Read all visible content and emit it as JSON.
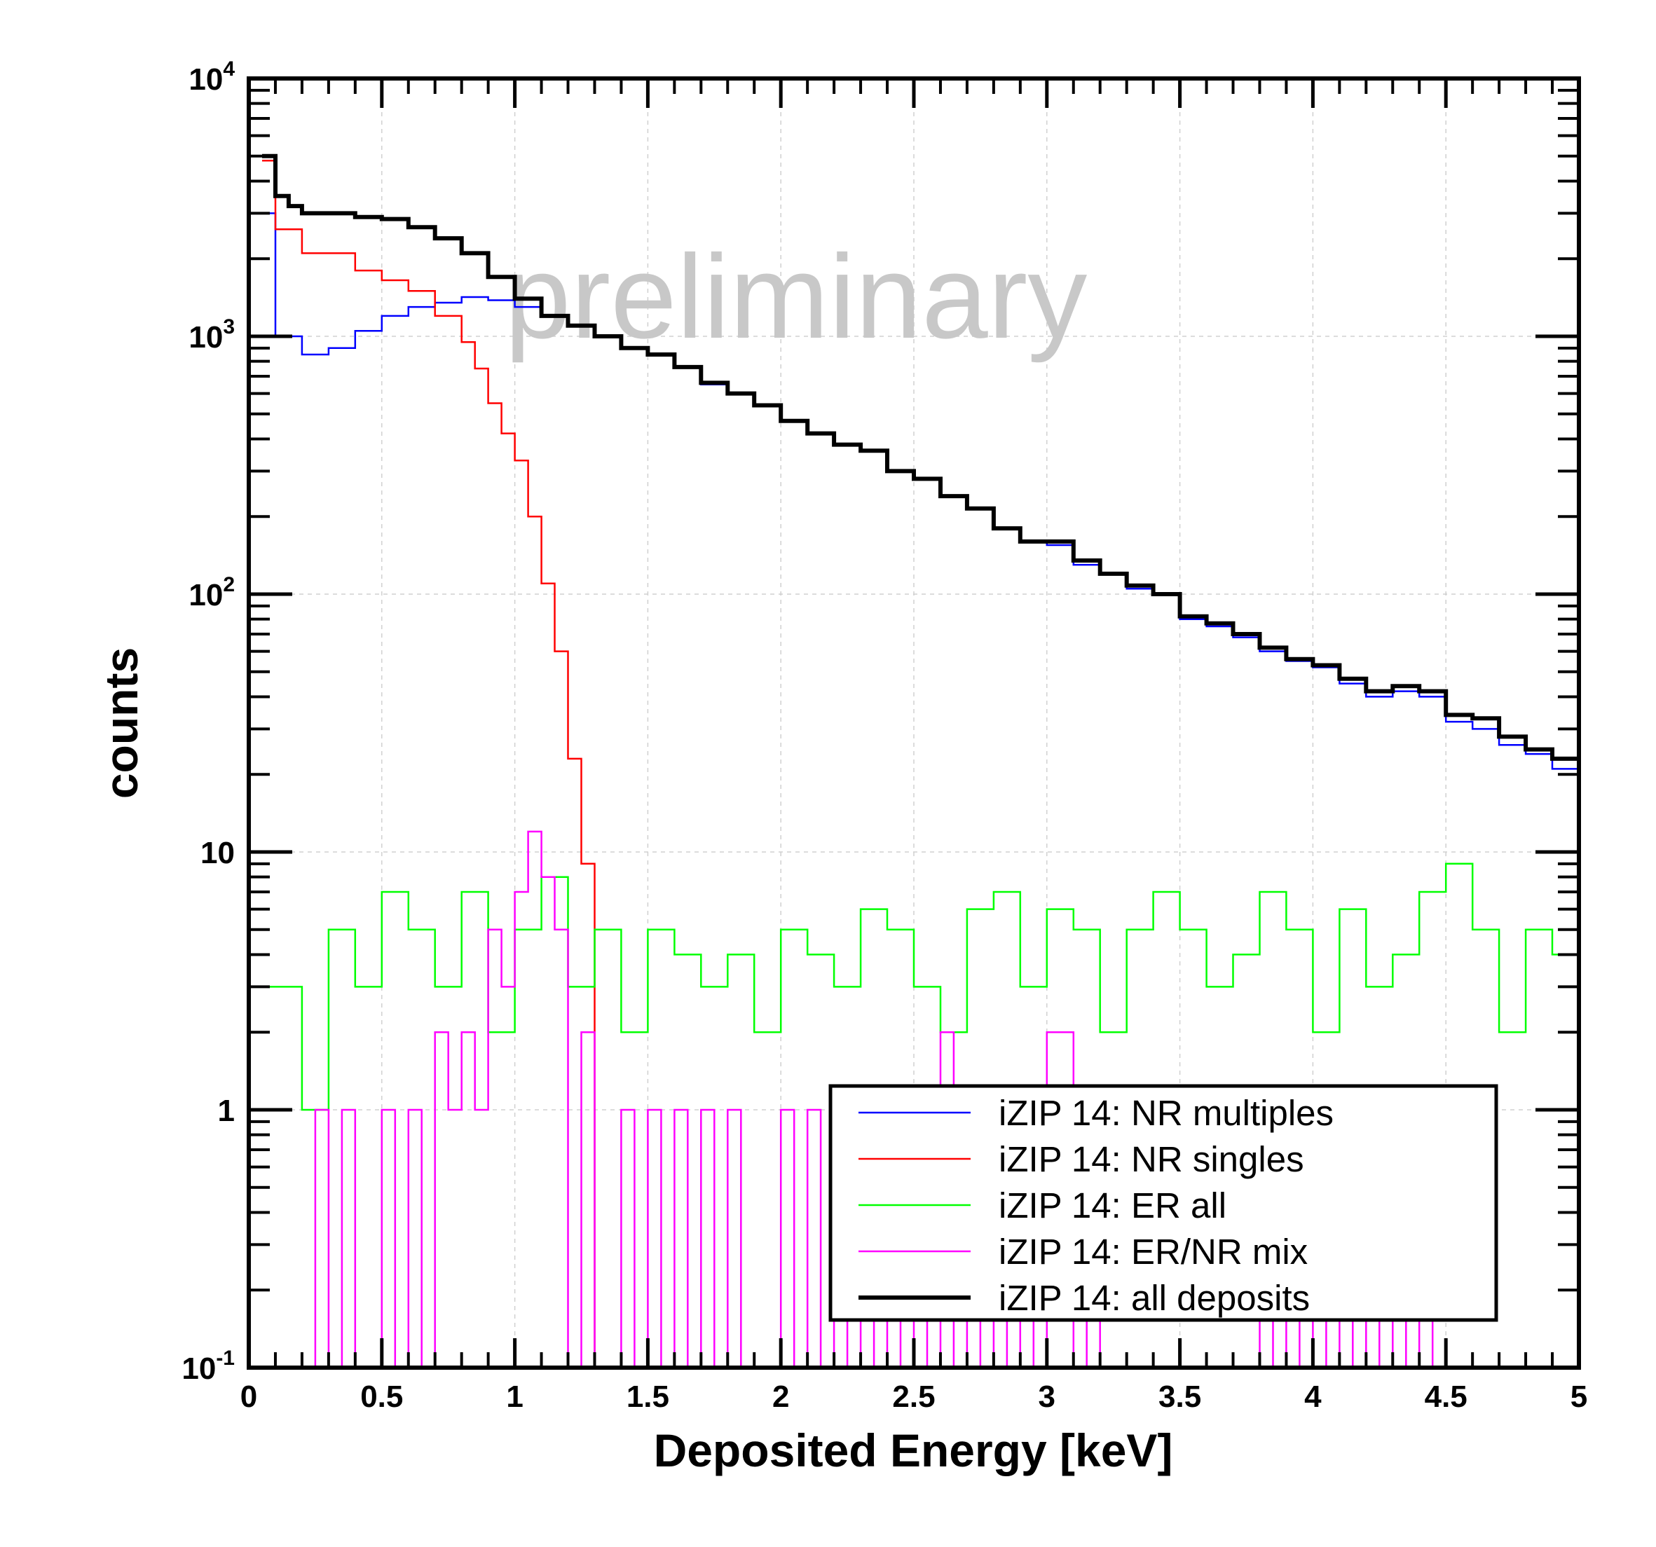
{
  "chart_data": {
    "type": "line",
    "style": "step histogram",
    "xlabel": "Deposited Energy [keV]",
    "ylabel": "counts",
    "xlim": [
      0,
      5
    ],
    "ylim": [
      0.1,
      10000
    ],
    "yscale": "log",
    "grid": true,
    "x_ticks": [
      "0",
      "0.5",
      "1",
      "1.5",
      "2",
      "2.5",
      "3",
      "3.5",
      "4",
      "4.5",
      "5"
    ],
    "y_ticks": [
      {
        "base": "10",
        "exp": "-1"
      },
      {
        "base": "1",
        "exp": ""
      },
      {
        "base": "10",
        "exp": ""
      },
      {
        "base": "10",
        "exp": "2"
      },
      {
        "base": "10",
        "exp": "3"
      },
      {
        "base": "10",
        "exp": "4"
      }
    ],
    "watermark": "preliminary",
    "legend_position": "bottom-right",
    "bin_width": 0.05,
    "series": [
      {
        "name": "iZIP 14: NR multiples",
        "color": "#0000ff",
        "stroke": 2.5,
        "x": [
          0.05,
          0.1,
          0.2,
          0.3,
          0.4,
          0.5,
          0.6,
          0.7,
          0.8,
          0.9,
          1.0,
          1.1,
          1.2,
          1.3,
          1.4,
          1.5,
          1.6,
          1.7,
          1.8,
          1.9,
          2.0,
          2.1,
          2.2,
          2.3,
          2.4,
          2.5,
          2.6,
          2.7,
          2.8,
          2.9,
          3.0,
          3.1,
          3.2,
          3.3,
          3.4,
          3.5,
          3.6,
          3.7,
          3.8,
          3.9,
          4.0,
          4.1,
          4.2,
          4.3,
          4.4,
          4.5,
          4.6,
          4.7,
          4.8,
          4.9,
          5.0
        ],
        "y": [
          3000,
          1000,
          850,
          900,
          1050,
          1200,
          1300,
          1350,
          1420,
          1380,
          1300,
          1200,
          1100,
          1000,
          900,
          850,
          760,
          650,
          600,
          540,
          470,
          420,
          380,
          360,
          300,
          280,
          240,
          215,
          180,
          160,
          155,
          130,
          120,
          105,
          100,
          80,
          75,
          68,
          60,
          55,
          52,
          45,
          40,
          42,
          40,
          32,
          30,
          26,
          24,
          21,
          16
        ]
      },
      {
        "name": "iZIP 14: NR singles",
        "color": "#ff0000",
        "stroke": 2.5,
        "x": [
          0.05,
          0.1,
          0.2,
          0.3,
          0.4,
          0.5,
          0.6,
          0.7,
          0.8,
          0.85,
          0.9,
          0.95,
          1.0,
          1.05,
          1.1,
          1.15,
          1.2,
          1.25,
          1.3
        ],
        "y": [
          4800,
          2600,
          2100,
          2100,
          1800,
          1650,
          1500,
          1200,
          950,
          750,
          550,
          420,
          330,
          200,
          110,
          60,
          23,
          9,
          0.1
        ]
      },
      {
        "name": "iZIP 14: ER all",
        "color": "#00ff00",
        "stroke": 2.5,
        "x": [
          0,
          0.1,
          0.2,
          0.3,
          0.4,
          0.5,
          0.6,
          0.7,
          0.8,
          0.9,
          1.0,
          1.1,
          1.2,
          1.3,
          1.4,
          1.5,
          1.6,
          1.7,
          1.8,
          1.9,
          2.0,
          2.1,
          2.2,
          2.3,
          2.4,
          2.5,
          2.6,
          2.7,
          2.8,
          2.9,
          3.0,
          3.1,
          3.2,
          3.3,
          3.4,
          3.5,
          3.6,
          3.7,
          3.8,
          3.9,
          4.0,
          4.1,
          4.2,
          4.3,
          4.4,
          4.5,
          4.6,
          4.7,
          4.8,
          4.9,
          5.0
        ],
        "y": [
          3,
          3,
          1,
          5,
          3,
          7,
          5,
          3,
          7,
          2,
          5,
          8,
          3,
          5,
          2,
          5,
          4,
          3,
          4,
          2,
          5,
          4,
          3,
          6,
          5,
          3,
          2,
          6,
          7,
          3,
          6,
          5,
          2,
          5,
          7,
          5,
          3,
          4,
          7,
          5,
          2,
          6,
          3,
          4,
          7,
          9,
          5,
          2,
          5,
          4,
          4
        ]
      },
      {
        "name": "iZIP 14: ER/NR mix",
        "color": "#ff00ff",
        "stroke": 2.5,
        "x": [
          0,
          0.25,
          0.3,
          0.35,
          0.4,
          0.5,
          0.55,
          0.6,
          0.65,
          0.7,
          0.75,
          0.8,
          0.85,
          0.9,
          0.95,
          1.0,
          1.05,
          1.1,
          1.15,
          1.2,
          1.25,
          1.3,
          1.35,
          1.4,
          1.45,
          1.5,
          1.55,
          1.6,
          1.65,
          1.7,
          1.75,
          1.8,
          1.85,
          1.9,
          1.95,
          2.0,
          2.05,
          2.1,
          2.15,
          2.2,
          2.25,
          2.3,
          2.35,
          2.4,
          2.45,
          2.5,
          2.55,
          2.6,
          2.65,
          2.7,
          2.75,
          2.8,
          2.85,
          2.9,
          2.95,
          3.0,
          3.05,
          3.1,
          3.15,
          3.2,
          3.3,
          3.4,
          3.5,
          3.6,
          3.7,
          3.8,
          3.85,
          3.9,
          3.95,
          4.0,
          4.05,
          4.1,
          4.15,
          4.2,
          4.25,
          4.3,
          4.35,
          4.4,
          4.45,
          4.5,
          5.0
        ],
        "y": [
          0.1,
          1,
          0.1,
          1,
          0.1,
          1,
          0.1,
          1,
          0.1,
          2,
          1,
          2,
          1,
          5,
          3,
          7,
          12,
          8,
          5,
          0.1,
          2,
          0.1,
          0.1,
          1,
          0.1,
          1,
          0.1,
          1,
          0.1,
          1,
          0.1,
          1,
          0.1,
          0.1,
          0.1,
          1,
          0.1,
          1,
          0.1,
          1,
          0.1,
          1,
          0.1,
          1,
          0.1,
          1,
          0.1,
          2,
          0.1,
          1,
          0.1,
          1,
          0.1,
          1,
          0.1,
          2,
          2,
          0.1,
          1,
          0.1,
          0.1,
          0.1,
          0.1,
          0.1,
          0.1,
          1,
          0.1,
          1,
          0.1,
          1,
          0.1,
          1,
          0.1,
          1,
          0.1,
          1,
          0.1,
          1,
          0.1,
          0.1,
          0.1
        ]
      },
      {
        "name": "iZIP 14: all deposits",
        "color": "#000000",
        "stroke": 6,
        "x": [
          0.05,
          0.1,
          0.15,
          0.2,
          0.3,
          0.4,
          0.5,
          0.6,
          0.7,
          0.8,
          0.9,
          1.0,
          1.1,
          1.2,
          1.3,
          1.4,
          1.5,
          1.6,
          1.7,
          1.8,
          1.9,
          2.0,
          2.1,
          2.2,
          2.3,
          2.4,
          2.5,
          2.6,
          2.7,
          2.8,
          2.9,
          3.0,
          3.1,
          3.2,
          3.3,
          3.4,
          3.5,
          3.6,
          3.7,
          3.8,
          3.9,
          4.0,
          4.1,
          4.2,
          4.3,
          4.4,
          4.5,
          4.6,
          4.7,
          4.8,
          4.9,
          5.0
        ],
        "y": [
          5000,
          3500,
          3200,
          3000,
          3000,
          2900,
          2850,
          2650,
          2400,
          2100,
          1700,
          1400,
          1200,
          1100,
          1000,
          900,
          850,
          760,
          660,
          600,
          540,
          470,
          420,
          380,
          360,
          300,
          280,
          240,
          215,
          180,
          160,
          160,
          135,
          120,
          108,
          100,
          82,
          77,
          70,
          62,
          56,
          53,
          47,
          42,
          44,
          42,
          34,
          33,
          28,
          25,
          23,
          20
        ]
      }
    ]
  }
}
